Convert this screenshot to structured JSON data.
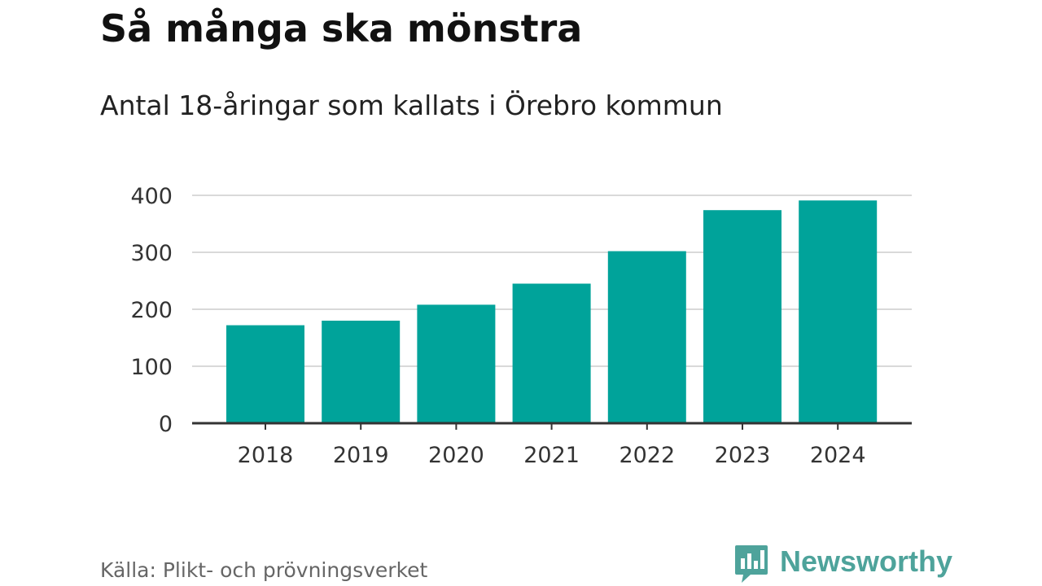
{
  "header": {
    "title": "Så många ska mönstra",
    "subtitle": "Antal 18-åringar som kallats i Örebro kommun"
  },
  "footer": {
    "source": "Källa: Plikt- och prövningsverket",
    "brand": "Newsworthy",
    "brand_icon": "bar-chart-speech-bubble-icon",
    "brand_color": "#4ea39b"
  },
  "chart_data": {
    "type": "bar",
    "categories": [
      "2018",
      "2019",
      "2020",
      "2021",
      "2022",
      "2023",
      "2024"
    ],
    "values": [
      172,
      180,
      208,
      245,
      302,
      374,
      391
    ],
    "ylim": [
      0,
      400
    ],
    "yticks": [
      "0",
      "100",
      "200",
      "300",
      "400"
    ],
    "grid": true,
    "legend": "none",
    "colors": {
      "bar": "#00a39a",
      "grid": "#d9d9d9",
      "axis": "#333333",
      "tick_text": "#333333"
    }
  }
}
